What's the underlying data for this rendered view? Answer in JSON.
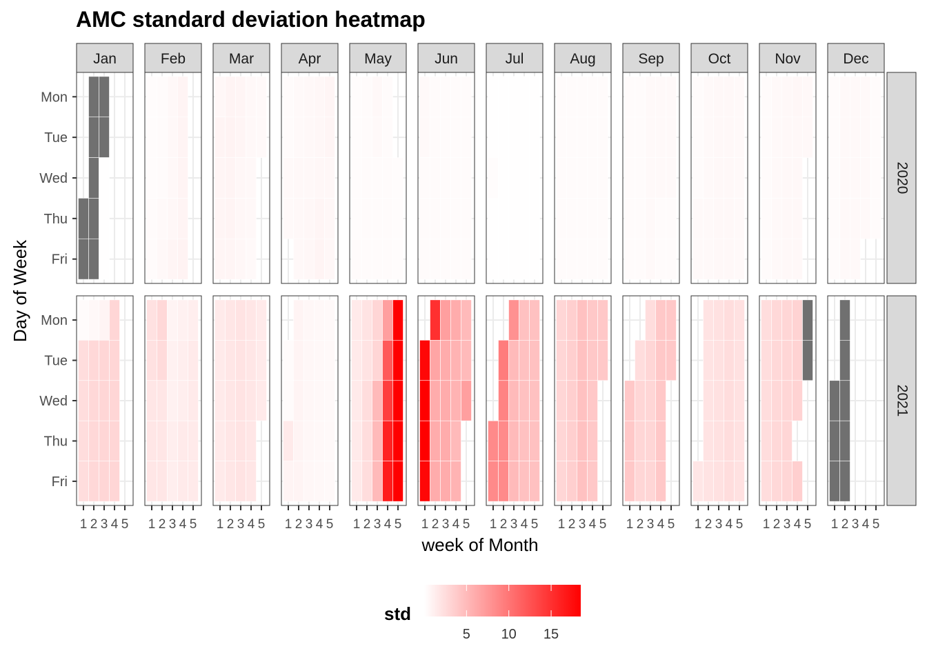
{
  "chart_data": {
    "type": "heatmap",
    "title": "AMC standard deviation heatmap",
    "xlabel": "week of Month",
    "ylabel": "Day of Week",
    "months": [
      "Jan",
      "Feb",
      "Mar",
      "Apr",
      "May",
      "Jun",
      "Jul",
      "Aug",
      "Sep",
      "Oct",
      "Nov",
      "Dec"
    ],
    "years": [
      "2020",
      "2021"
    ],
    "days": [
      "Mon",
      "Tue",
      "Wed",
      "Thu",
      "Fri"
    ],
    "week_ticks": [
      "1",
      "2",
      "3",
      "4",
      "5"
    ],
    "legend": {
      "title": "std",
      "ticks": [
        5,
        10,
        15
      ],
      "range": [
        0,
        18.5
      ],
      "low_color": "#FFFFFF",
      "high_color": "#FF0000"
    },
    "missing_color": "#707070",
    "tiles": {
      "2020": {
        "Jan": [
          [
            null,
            "NA",
            "NA"
          ],
          [
            null,
            "NA",
            "NA"
          ],
          [
            null,
            "NA",
            0.1
          ],
          [
            "NA",
            "NA",
            0.1
          ],
          [
            "NA",
            "NA",
            0.1
          ]
        ],
        "Feb": [
          [
            0.2,
            0.3,
            0.5,
            0.8
          ],
          [
            0.2,
            0.3,
            0.5,
            0.8
          ],
          [
            0.2,
            0.3,
            0.5,
            0.8
          ],
          [
            0.3,
            0.4,
            0.6,
            0.8
          ],
          [
            0.3,
            0.5,
            0.7,
            0.9
          ]
        ],
        "Mar": [
          [
            0.6,
            0.8,
            0.7,
            0.5,
            0.4
          ],
          [
            0.8,
            0.9,
            0.7,
            0.5,
            0.4
          ],
          [
            0.7,
            0.8,
            0.6,
            0.5,
            null
          ],
          [
            0.7,
            0.8,
            0.6,
            0.5,
            null
          ],
          [
            0.7,
            0.7,
            0.6,
            0.4,
            null
          ]
        ],
        "Apr": [
          [
            0.3,
            0.4,
            0.5,
            0.6,
            0.7
          ],
          [
            0.3,
            0.4,
            0.5,
            0.6,
            0.7
          ],
          [
            0.4,
            0.5,
            0.5,
            0.6,
            0.6
          ],
          [
            0.4,
            0.5,
            0.6,
            0.7,
            0.6
          ],
          [
            null,
            0.5,
            0.6,
            0.8,
            0.6
          ]
        ],
        "May": [
          [
            0.2,
            0.3,
            0.5,
            0.3,
            null
          ],
          [
            0.2,
            0.3,
            0.4,
            0.3,
            null
          ],
          [
            0.2,
            0.3,
            0.3,
            0.3,
            0.2
          ],
          [
            0.2,
            0.3,
            0.3,
            0.3,
            0.2
          ],
          [
            0.3,
            0.3,
            0.3,
            0.3,
            0.2
          ]
        ],
        "Jun": [
          [
            0.4,
            0.3,
            0.3,
            0.3,
            0.3
          ],
          [
            0.4,
            0.3,
            0.3,
            0.3,
            0.3
          ],
          [
            0.3,
            0.3,
            0.3,
            0.3,
            0.3
          ],
          [
            0.3,
            0.3,
            0.3,
            0.3,
            0.3
          ],
          [
            0.3,
            0.3,
            0.3,
            0.3,
            0.3
          ]
        ],
        "Jul": [
          [
            0.1,
            0.1,
            0.1,
            0.1,
            0.1
          ],
          [
            0.1,
            0.1,
            0.1,
            0.1,
            0.1
          ],
          [
            0.2,
            0.1,
            0.1,
            0.1,
            0.1
          ],
          [
            0.1,
            0.1,
            0.1,
            0.1,
            0.1
          ],
          [
            0.1,
            0.1,
            0.1,
            0.1,
            0.1
          ]
        ],
        "Aug": [
          [
            0.3,
            0.3,
            0.3,
            0.3,
            0.3
          ],
          [
            0.3,
            0.3,
            0.3,
            0.3,
            0.3
          ],
          [
            0.3,
            0.3,
            0.3,
            0.3,
            0.3
          ],
          [
            0.3,
            0.3,
            0.3,
            0.3,
            0.3
          ],
          [
            0.3,
            0.3,
            0.3,
            0.3,
            0.3
          ]
        ],
        "Sep": [
          [
            0.3,
            0.3,
            0.4,
            0.4,
            0.4
          ],
          [
            0.3,
            0.3,
            0.4,
            0.4,
            0.4
          ],
          [
            0.3,
            0.3,
            0.4,
            0.4,
            0.4
          ],
          [
            0.3,
            0.3,
            0.4,
            0.3,
            0.3
          ],
          [
            0.3,
            0.3,
            0.4,
            0.3,
            0.3
          ]
        ],
        "Oct": [
          [
            0.3,
            0.4,
            0.5,
            0.5,
            0.4
          ],
          [
            0.3,
            0.4,
            0.5,
            0.5,
            0.4
          ],
          [
            0.3,
            0.4,
            0.5,
            0.5,
            0.4
          ],
          [
            0.4,
            0.4,
            0.5,
            0.5,
            0.4
          ],
          [
            0.4,
            0.4,
            0.5,
            0.5,
            0.4
          ]
        ],
        "Nov": [
          [
            0.3,
            0.4,
            0.5,
            0.6,
            0.5
          ],
          [
            0.3,
            0.4,
            0.5,
            0.5,
            0.5
          ],
          [
            0.3,
            0.4,
            0.5,
            0.5,
            null
          ],
          [
            0.3,
            0.4,
            0.5,
            0.5,
            null
          ],
          [
            0.3,
            0.4,
            0.5,
            0.5,
            null
          ]
        ],
        "Dec": [
          [
            0.3,
            0.4,
            0.4,
            0.4,
            0.3
          ],
          [
            0.3,
            0.4,
            0.4,
            0.4,
            0.3
          ],
          [
            0.3,
            0.4,
            0.4,
            0.4,
            0.3
          ],
          [
            0.3,
            0.4,
            0.4,
            0.4,
            0.3
          ],
          [
            0.3,
            0.4,
            0.4,
            null,
            null
          ]
        ]
      },
      "2021": {
        "Jan": [
          [
            0.3,
            0.5,
            0.8,
            3.0
          ],
          [
            2.5,
            2.8,
            3.0,
            3.0
          ],
          [
            2.5,
            2.8,
            3.0,
            3.0
          ],
          [
            2.5,
            2.8,
            3.0,
            3.0
          ],
          [
            2.5,
            2.8,
            3.0,
            3.0
          ]
        ],
        "Feb": [
          [
            2.2,
            2.8,
            0.8,
            1.0,
            1.2
          ],
          [
            2.2,
            2.6,
            1.0,
            1.2,
            1.5
          ],
          [
            1.8,
            1.8,
            1.0,
            1.2,
            1.5
          ],
          [
            1.8,
            1.8,
            1.2,
            1.5,
            1.5
          ],
          [
            1.8,
            1.8,
            1.2,
            1.5,
            1.5
          ]
        ],
        "Mar": [
          [
            1.5,
            1.8,
            2.0,
            1.8,
            1.5
          ],
          [
            1.5,
            1.8,
            2.0,
            1.8,
            1.5
          ],
          [
            1.5,
            1.8,
            2.0,
            1.8,
            1.5
          ],
          [
            1.5,
            1.8,
            2.0,
            1.8,
            null
          ],
          [
            1.5,
            1.8,
            2.0,
            1.8,
            null
          ]
        ],
        "Apr": [
          [
            null,
            0.8,
            0.6,
            0.5,
            0.4
          ],
          [
            0.3,
            0.8,
            0.6,
            0.5,
            0.4
          ],
          [
            0.3,
            0.8,
            0.6,
            0.5,
            0.4
          ],
          [
            1.5,
            0.8,
            0.6,
            0.5,
            0.4
          ],
          [
            0.8,
            0.8,
            0.6,
            0.5,
            0.4
          ]
        ],
        "May": [
          [
            1.5,
            2.0,
            3.0,
            7.0,
            18.5
          ],
          [
            1.5,
            2.0,
            3.0,
            12.0,
            18.5
          ],
          [
            1.5,
            2.5,
            5.0,
            14.0,
            18.5
          ],
          [
            1.5,
            2.5,
            5.0,
            16.0,
            18.5
          ],
          [
            1.5,
            2.5,
            5.0,
            16.5,
            18.5
          ]
        ],
        "Jun": [
          [
            null,
            15.0,
            7.0,
            6.0,
            5.0
          ],
          [
            18.0,
            6.5,
            6.0,
            5.5,
            5.0
          ],
          [
            18.5,
            6.0,
            6.0,
            5.5,
            7.0
          ],
          [
            18.5,
            6.0,
            6.0,
            5.0,
            null
          ],
          [
            18.0,
            6.0,
            6.0,
            5.5,
            null
          ]
        ],
        "Jul": [
          [
            null,
            null,
            8.0,
            4.5,
            4.5
          ],
          [
            null,
            9.5,
            5.0,
            4.5,
            4.5
          ],
          [
            null,
            9.0,
            5.0,
            4.5,
            4.5
          ],
          [
            8.5,
            8.5,
            5.0,
            4.5,
            4.5
          ],
          [
            8.5,
            8.5,
            5.0,
            4.5,
            4.5
          ]
        ],
        "Aug": [
          [
            3.0,
            3.5,
            4.5,
            4.0,
            4.0
          ],
          [
            3.0,
            3.5,
            4.5,
            4.0,
            4.0
          ],
          [
            3.0,
            3.5,
            4.5,
            4.0,
            null
          ],
          [
            3.0,
            3.5,
            4.5,
            4.0,
            null
          ],
          [
            3.0,
            3.5,
            4.5,
            4.0,
            null
          ]
        ],
        "Sep": [
          [
            null,
            null,
            2.5,
            4.0,
            4.0
          ],
          [
            null,
            2.5,
            3.0,
            4.0,
            4.0
          ],
          [
            4.0,
            3.0,
            3.0,
            4.0,
            null
          ],
          [
            4.0,
            3.0,
            3.0,
            4.0,
            null
          ],
          [
            4.0,
            3.0,
            3.0,
            4.0,
            null
          ]
        ],
        "Oct": [
          [
            null,
            2.0,
            2.2,
            2.5,
            2.2
          ],
          [
            null,
            2.0,
            2.2,
            2.5,
            2.2
          ],
          [
            null,
            2.0,
            2.2,
            2.5,
            2.2
          ],
          [
            null,
            2.0,
            2.2,
            2.5,
            2.2
          ],
          [
            1.8,
            2.0,
            2.2,
            2.5,
            2.2
          ]
        ],
        "Nov": [
          [
            2.5,
            2.8,
            3.0,
            3.2,
            "NA"
          ],
          [
            2.5,
            2.8,
            3.0,
            3.2,
            "NA"
          ],
          [
            2.5,
            2.8,
            3.0,
            3.2,
            null
          ],
          [
            2.5,
            2.8,
            3.0,
            null,
            null
          ],
          [
            2.5,
            2.8,
            3.0,
            3.5,
            null
          ]
        ],
        "Dec": [
          [
            null,
            "NA",
            null,
            null,
            null
          ],
          [
            null,
            "NA",
            null,
            null,
            null
          ],
          [
            "NA",
            "NA",
            null,
            null,
            null
          ],
          [
            "NA",
            "NA",
            null,
            null,
            null
          ],
          [
            "NA",
            "NA",
            null,
            null,
            null
          ]
        ]
      }
    }
  }
}
